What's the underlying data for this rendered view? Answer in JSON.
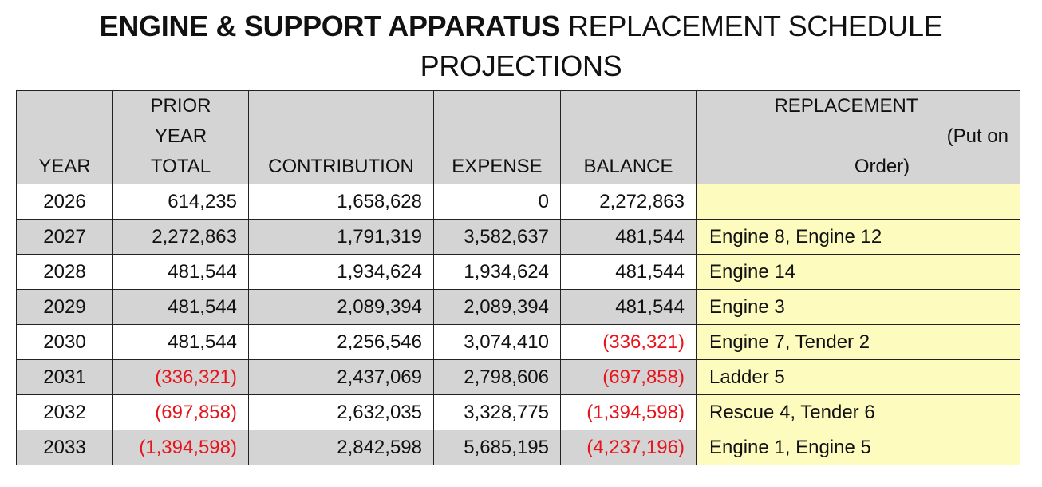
{
  "title": {
    "bold_part": "ENGINE & SUPPORT APPARATUS",
    "regular_part": " REPLACEMENT SCHEDULE",
    "line2": "PROJECTIONS"
  },
  "headers": {
    "year": "YEAR",
    "prior_line1": "PRIOR",
    "prior_line2": "YEAR",
    "prior_line3": "TOTAL",
    "contribution": "CONTRIBUTION",
    "expense": "EXPENSE",
    "balance": "BALANCE",
    "replacement_line1": "REPLACEMENT",
    "replacement_line2": "(Put on",
    "replacement_line3": "Order)"
  },
  "rows": [
    {
      "year": "2026",
      "prior": "614,235",
      "prior_negative": false,
      "contribution": "1,658,628",
      "expense": "0",
      "balance": "2,272,863",
      "balance_negative": false,
      "replacement": ""
    },
    {
      "year": "2027",
      "prior": "2,272,863",
      "prior_negative": false,
      "contribution": "1,791,319",
      "expense": "3,582,637",
      "balance": "481,544",
      "balance_negative": false,
      "replacement": "Engine 8, Engine 12"
    },
    {
      "year": "2028",
      "prior": "481,544",
      "prior_negative": false,
      "contribution": "1,934,624",
      "expense": "1,934,624",
      "balance": "481,544",
      "balance_negative": false,
      "replacement": "Engine 14"
    },
    {
      "year": "2029",
      "prior": "481,544",
      "prior_negative": false,
      "contribution": "2,089,394",
      "expense": "2,089,394",
      "balance": "481,544",
      "balance_negative": false,
      "replacement": "Engine 3"
    },
    {
      "year": "2030",
      "prior": "481,544",
      "prior_negative": false,
      "contribution": "2,256,546",
      "expense": "3,074,410",
      "balance": "(336,321)",
      "balance_negative": true,
      "replacement": "Engine 7, Tender 2"
    },
    {
      "year": "2031",
      "prior": "(336,321)",
      "prior_negative": true,
      "contribution": "2,437,069",
      "expense": "2,798,606",
      "balance": "(697,858)",
      "balance_negative": true,
      "replacement": "Ladder 5"
    },
    {
      "year": "2032",
      "prior": "(697,858)",
      "prior_negative": true,
      "contribution": "2,632,035",
      "expense": "3,328,775",
      "balance": "(1,394,598)",
      "balance_negative": true,
      "replacement": "Rescue 4, Tender 6"
    },
    {
      "year": "2033",
      "prior": "(1,394,598)",
      "prior_negative": true,
      "contribution": "2,842,598",
      "expense": "5,685,195",
      "balance": "(4,237,196)",
      "balance_negative": true,
      "replacement": "Engine 1, Engine 5"
    }
  ],
  "colors": {
    "header_bg": "#d4d4d4",
    "alt_row_bg": "#d4d4d4",
    "replacement_bg": "#fdfcbe",
    "negative_text": "#e8141b"
  }
}
